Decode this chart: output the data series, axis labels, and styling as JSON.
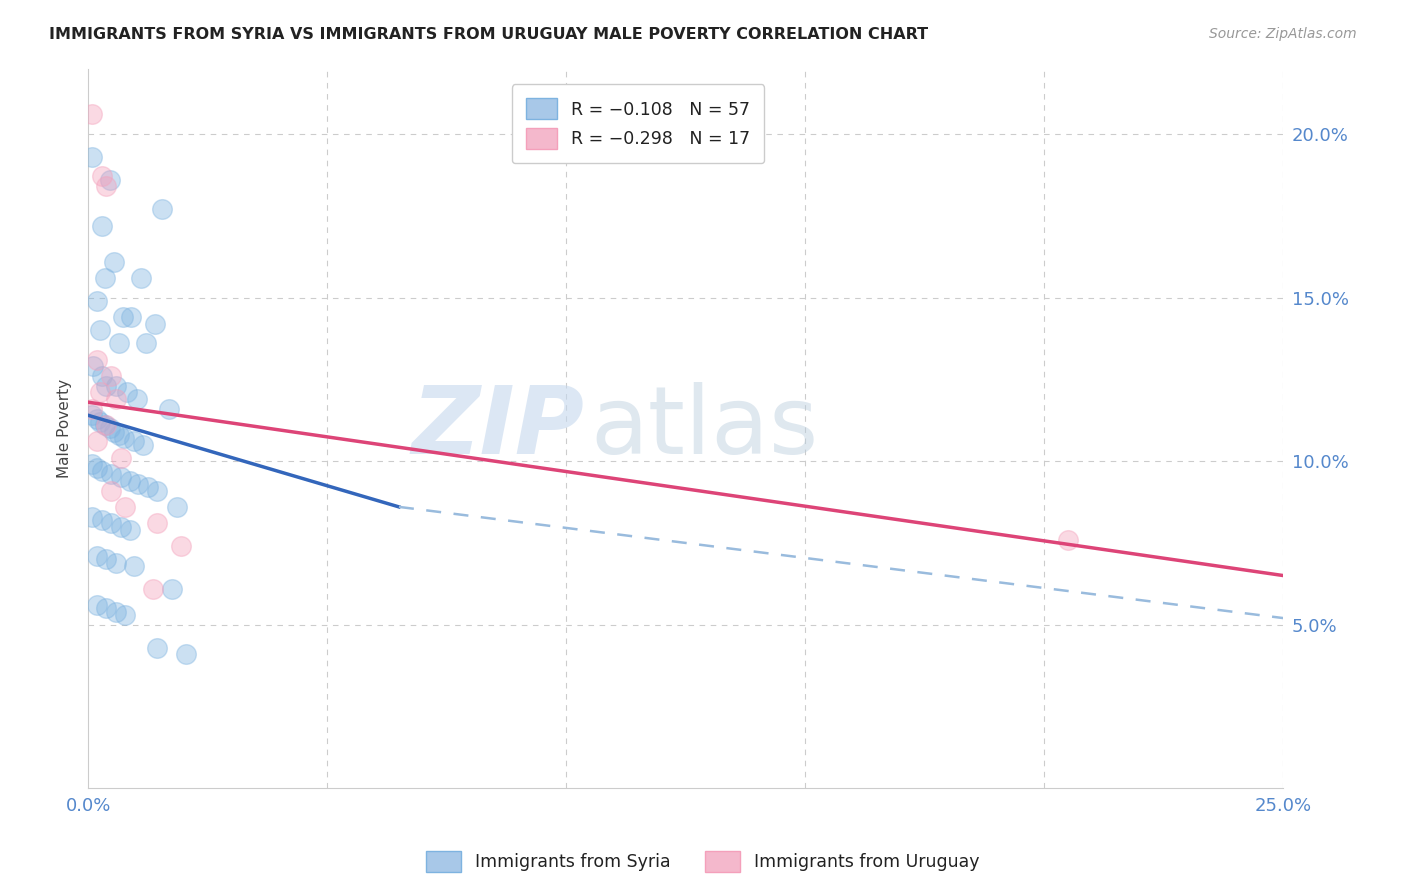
{
  "title": "IMMIGRANTS FROM SYRIA VS IMMIGRANTS FROM URUGUAY MALE POVERTY CORRELATION CHART",
  "source": "Source: ZipAtlas.com",
  "ylabel": "Male Poverty",
  "xlim": [
    0.0,
    0.25
  ],
  "ylim": [
    0.0,
    0.22
  ],
  "watermark_zip": "ZIP",
  "watermark_atlas": "atlas",
  "y_ticks": [
    0.05,
    0.1,
    0.15,
    0.2
  ],
  "y_tick_labels": [
    "5.0%",
    "10.0%",
    "15.0%",
    "20.0%"
  ],
  "x_ticks": [
    0.0,
    0.05,
    0.1,
    0.15,
    0.2,
    0.25
  ],
  "x_tick_labels": [
    "0.0%",
    "",
    "",
    "",
    "",
    "25.0%"
  ],
  "syria_scatter": [
    [
      0.0008,
      0.193
    ],
    [
      0.0045,
      0.186
    ],
    [
      0.0028,
      0.172
    ],
    [
      0.0055,
      0.161
    ],
    [
      0.0035,
      0.156
    ],
    [
      0.011,
      0.156
    ],
    [
      0.0018,
      0.149
    ],
    [
      0.0072,
      0.144
    ],
    [
      0.009,
      0.144
    ],
    [
      0.0025,
      0.14
    ],
    [
      0.0065,
      0.136
    ],
    [
      0.012,
      0.136
    ],
    [
      0.014,
      0.142
    ],
    [
      0.001,
      0.129
    ],
    [
      0.003,
      0.126
    ],
    [
      0.0038,
      0.123
    ],
    [
      0.0058,
      0.123
    ],
    [
      0.0082,
      0.121
    ],
    [
      0.0102,
      0.119
    ],
    [
      0.017,
      0.116
    ],
    [
      0.0008,
      0.114
    ],
    [
      0.0018,
      0.113
    ],
    [
      0.0025,
      0.112
    ],
    [
      0.0035,
      0.111
    ],
    [
      0.0045,
      0.11
    ],
    [
      0.0055,
      0.109
    ],
    [
      0.0065,
      0.108
    ],
    [
      0.0075,
      0.107
    ],
    [
      0.0095,
      0.106
    ],
    [
      0.0115,
      0.105
    ],
    [
      0.0008,
      0.099
    ],
    [
      0.0018,
      0.098
    ],
    [
      0.0028,
      0.097
    ],
    [
      0.0048,
      0.096
    ],
    [
      0.0068,
      0.095
    ],
    [
      0.0088,
      0.094
    ],
    [
      0.0105,
      0.093
    ],
    [
      0.0125,
      0.092
    ],
    [
      0.0145,
      0.091
    ],
    [
      0.0008,
      0.083
    ],
    [
      0.0028,
      0.082
    ],
    [
      0.0048,
      0.081
    ],
    [
      0.0068,
      0.08
    ],
    [
      0.0088,
      0.079
    ],
    [
      0.0018,
      0.071
    ],
    [
      0.0038,
      0.07
    ],
    [
      0.0058,
      0.069
    ],
    [
      0.0095,
      0.068
    ],
    [
      0.0018,
      0.056
    ],
    [
      0.0038,
      0.055
    ],
    [
      0.0058,
      0.054
    ],
    [
      0.0078,
      0.053
    ],
    [
      0.0145,
      0.043
    ],
    [
      0.0185,
      0.086
    ],
    [
      0.0155,
      0.177
    ],
    [
      0.0175,
      0.061
    ],
    [
      0.0205,
      0.041
    ]
  ],
  "uruguay_scatter": [
    [
      0.0008,
      0.206
    ],
    [
      0.0028,
      0.187
    ],
    [
      0.0038,
      0.184
    ],
    [
      0.0018,
      0.131
    ],
    [
      0.0048,
      0.126
    ],
    [
      0.0025,
      0.121
    ],
    [
      0.0058,
      0.119
    ],
    [
      0.0008,
      0.116
    ],
    [
      0.0038,
      0.111
    ],
    [
      0.0018,
      0.106
    ],
    [
      0.0068,
      0.101
    ],
    [
      0.0048,
      0.091
    ],
    [
      0.0078,
      0.086
    ],
    [
      0.0145,
      0.081
    ],
    [
      0.0195,
      0.074
    ],
    [
      0.205,
      0.076
    ],
    [
      0.0135,
      0.061
    ]
  ],
  "syria_line": [
    0.0,
    0.114,
    0.065,
    0.086
  ],
  "syria_dash": [
    0.065,
    0.086,
    0.25,
    0.052
  ],
  "uruguay_line": [
    0.0,
    0.118,
    0.25,
    0.065
  ],
  "background_color": "#ffffff",
  "scatter_size": 200,
  "scatter_alpha": 0.4,
  "scatter_edge_alpha": 0.7,
  "syria_color": "#7eb3e0",
  "uruguay_color": "#f4a0bb",
  "syria_line_color": "#3366bb",
  "uruguay_line_color": "#dd4477",
  "dashed_line_color": "#99bbdd"
}
